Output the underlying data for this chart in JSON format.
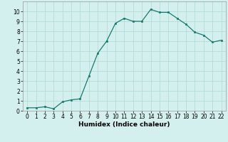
{
  "x": [
    0,
    1,
    2,
    3,
    4,
    5,
    6,
    7,
    8,
    9,
    10,
    11,
    12,
    13,
    14,
    15,
    16,
    17,
    18,
    19,
    20,
    21,
    22
  ],
  "y": [
    0.3,
    0.3,
    0.4,
    0.2,
    0.9,
    1.1,
    1.2,
    3.5,
    5.8,
    7.0,
    8.8,
    9.3,
    9.0,
    9.0,
    10.2,
    9.9,
    9.9,
    9.3,
    8.7,
    7.9,
    7.6,
    6.9,
    7.1
  ],
  "xlabel": "Humidex (Indice chaleur)",
  "xlim": [
    -0.5,
    22.5
  ],
  "ylim": [
    0,
    11
  ],
  "yticks": [
    0,
    1,
    2,
    3,
    4,
    5,
    6,
    7,
    8,
    9,
    10
  ],
  "xticks": [
    0,
    1,
    2,
    3,
    4,
    5,
    6,
    7,
    8,
    9,
    10,
    11,
    12,
    13,
    14,
    15,
    16,
    17,
    18,
    19,
    20,
    21,
    22
  ],
  "line_color": "#1a7a6e",
  "marker": "s",
  "marker_size": 2.0,
  "bg_color": "#d4f0ee",
  "grid_color": "#aed8d4",
  "label_fontsize": 6.5,
  "tick_fontsize": 5.5
}
